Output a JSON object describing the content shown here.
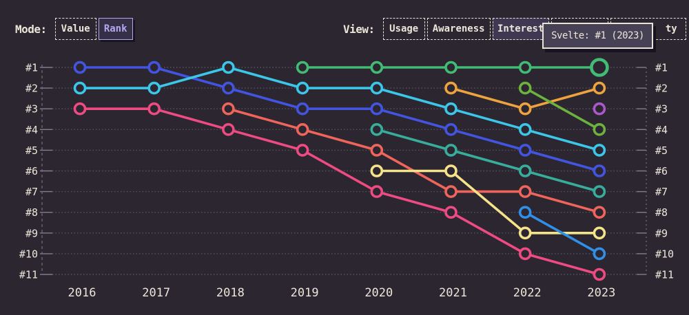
{
  "header": {
    "mode": {
      "label": "Mode:",
      "options": [
        {
          "label": "Value",
          "active": false
        },
        {
          "label": "Rank",
          "active": true
        }
      ]
    },
    "view": {
      "label": "View:",
      "options": [
        {
          "label": "Usage",
          "active": false
        },
        {
          "label": "Awareness",
          "active": false
        },
        {
          "label": "Interest",
          "active": true
        },
        {
          "label": "",
          "active": false
        },
        {
          "label": "ty",
          "active": false
        }
      ]
    }
  },
  "tooltip": {
    "text": "Svelte: #1 (2023)"
  },
  "chart_data": {
    "type": "line",
    "subtype": "bump-rank-chart",
    "x": [
      2016,
      2017,
      2018,
      2019,
      2020,
      2021,
      2022,
      2023
    ],
    "y_rank_labels": [
      "#1",
      "#2",
      "#3",
      "#4",
      "#5",
      "#6",
      "#7",
      "#8",
      "#9",
      "#10",
      "#11"
    ],
    "ylim": [
      1,
      11
    ],
    "grid": "dotted horizontal lines, rank labels on both left and right sides",
    "series": [
      {
        "name": "blue",
        "color": "#4355e0",
        "ranks": [
          1,
          1,
          2,
          3,
          3,
          4,
          5,
          6
        ]
      },
      {
        "name": "cyan",
        "color": "#3cc6e8",
        "ranks": [
          2,
          2,
          1,
          2,
          2,
          3,
          4,
          5
        ]
      },
      {
        "name": "pink",
        "color": "#ee4b82",
        "ranks": [
          3,
          3,
          4,
          5,
          7,
          8,
          10,
          11
        ]
      },
      {
        "name": "salmon",
        "color": "#f0655b",
        "ranks": [
          null,
          null,
          3,
          4,
          5,
          7,
          7,
          8
        ]
      },
      {
        "name": "Svelte",
        "color": "#42bc75",
        "ranks": [
          null,
          null,
          null,
          1,
          1,
          1,
          1,
          1
        ],
        "highlight_last": true
      },
      {
        "name": "teal",
        "color": "#39ad9b",
        "ranks": [
          null,
          null,
          null,
          null,
          4,
          5,
          6,
          7
        ]
      },
      {
        "name": "yellow",
        "color": "#f4e389",
        "ranks": [
          null,
          null,
          null,
          null,
          6,
          6,
          9,
          9
        ]
      },
      {
        "name": "orange",
        "color": "#eea43e",
        "ranks": [
          null,
          null,
          null,
          null,
          null,
          2,
          3,
          2
        ]
      },
      {
        "name": "lime",
        "color": "#6db23e",
        "ranks": [
          null,
          null,
          null,
          null,
          null,
          null,
          2,
          4
        ]
      },
      {
        "name": "sky",
        "color": "#3090e8",
        "ranks": [
          null,
          null,
          null,
          null,
          null,
          null,
          8,
          10
        ]
      },
      {
        "name": "purple",
        "color": "#aa58ca",
        "ranks": [
          null,
          null,
          null,
          null,
          null,
          null,
          null,
          3
        ]
      }
    ],
    "highlight": {
      "series": "Svelte",
      "x": 2023,
      "rank": 1,
      "tooltip": "Svelte: #1 (2023)"
    }
  },
  "colors": {
    "background": "#2b2630",
    "grid": "#585360",
    "axis_text": "#ece6da",
    "accent_active": "#b4a6f1",
    "tooltip_bg": "#474156"
  }
}
